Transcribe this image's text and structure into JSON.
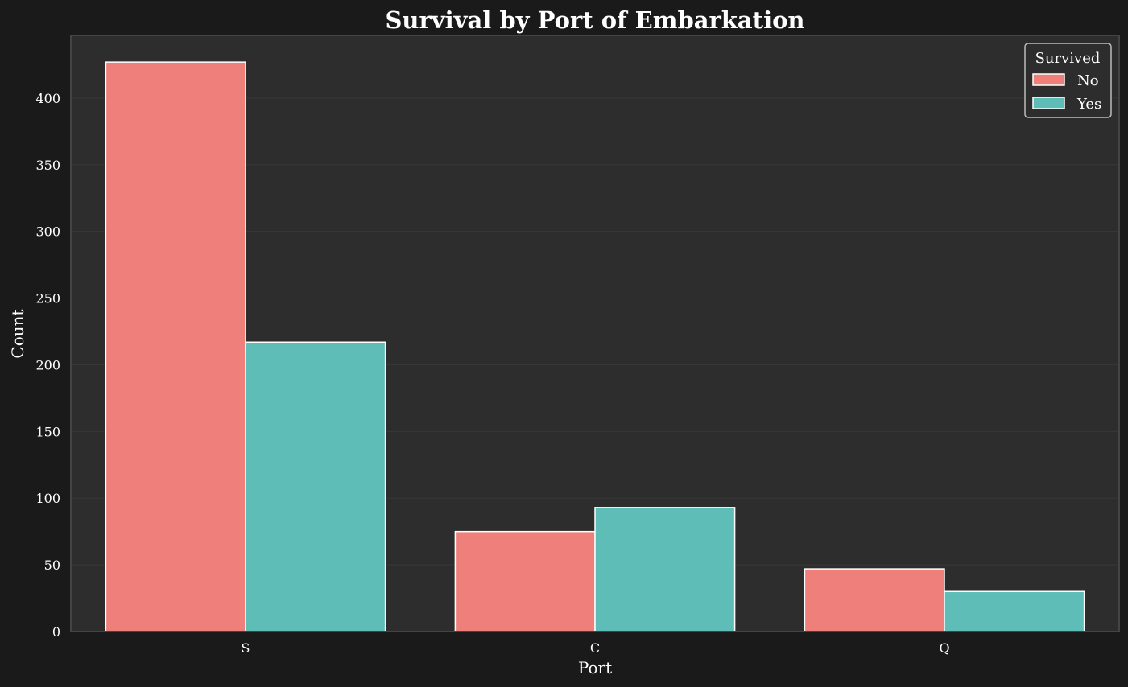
{
  "chart_data": {
    "type": "bar",
    "title": "Survival by Port of Embarkation",
    "xlabel": "Port",
    "ylabel": "Count",
    "categories": [
      "S",
      "C",
      "Q"
    ],
    "series": [
      {
        "name": "No",
        "color": "#ef7f7b",
        "values": [
          427,
          75,
          47
        ]
      },
      {
        "name": "Yes",
        "color": "#5fbdb8",
        "values": [
          217,
          93,
          30
        ]
      }
    ],
    "ylim": [
      0,
      447
    ],
    "yticks": [
      0,
      50,
      100,
      150,
      200,
      250,
      300,
      350,
      400
    ],
    "grid": true,
    "legend": {
      "title": "Survived",
      "position": "top-right"
    }
  },
  "colors": {
    "figure_bg": "#1a1a1a",
    "axes_bg": "#2d2d2d",
    "text": "#ffffff",
    "grid": "#383838",
    "spine": "#444444",
    "bar_edge": "#ffffff"
  }
}
